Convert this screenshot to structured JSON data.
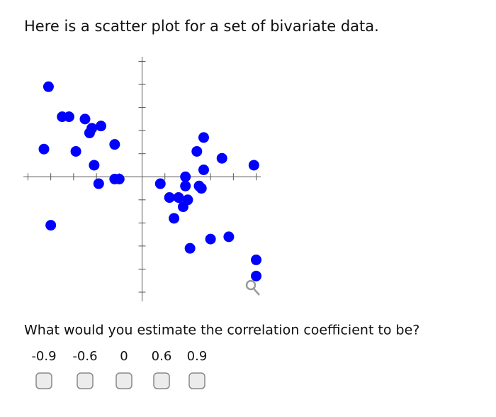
{
  "header": {
    "title": "Here is a scatter plot for a set of bivariate data."
  },
  "chart_data": {
    "type": "scatter",
    "color": "#0000ff",
    "x": [
      -4.1,
      -3.5,
      -3.2,
      -2.5,
      -2.2,
      -1.8,
      -2.3,
      -4.3,
      -2.9,
      -1.2,
      -2.1,
      -1.9,
      -1.2,
      -1.0,
      -4.0,
      0.8,
      1.2,
      1.6,
      2.0,
      1.8,
      1.4,
      1.9,
      1.9,
      2.5,
      2.6,
      2.7,
      2.4,
      2.7,
      3.5,
      4.9,
      2.1,
      3.0,
      3.8,
      5.0,
      5.0
    ],
    "y": [
      3.9,
      2.6,
      2.6,
      2.5,
      2.1,
      2.2,
      1.9,
      1.2,
      1.1,
      1.4,
      0.5,
      -0.3,
      -0.1,
      -0.1,
      -2.1,
      -0.3,
      -0.9,
      -0.9,
      -1.0,
      -1.3,
      -1.8,
      0.0,
      -0.4,
      -0.4,
      -0.5,
      0.3,
      1.1,
      1.7,
      0.8,
      0.5,
      -3.1,
      -2.7,
      -2.6,
      -3.6,
      -4.3
    ],
    "xlim": [
      -5.2,
      5.2
    ],
    "ylim": [
      -5.4,
      5.2
    ],
    "xticks": [
      -5,
      -4,
      -3,
      -2,
      -1,
      1,
      2,
      3,
      4,
      5
    ],
    "yticks": [
      -5,
      -4,
      -3,
      -2,
      -1,
      1,
      2,
      3,
      4,
      5
    ]
  },
  "question": {
    "text": "What would you estimate the correlation coefficient to be?",
    "options": [
      "-0.9",
      "-0.6",
      "0",
      "0.6",
      "0.9"
    ]
  }
}
